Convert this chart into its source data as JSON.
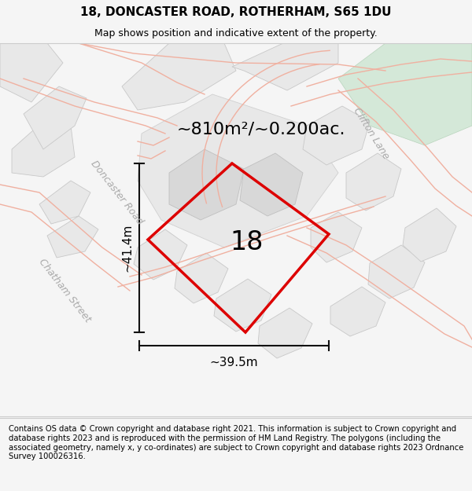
{
  "title_line1": "18, DONCASTER ROAD, ROTHERHAM, S65 1DU",
  "title_line2": "Map shows position and indicative extent of the property.",
  "footer_text": "Contains OS data © Crown copyright and database right 2021. This information is subject to Crown copyright and database rights 2023 and is reproduced with the permission of HM Land Registry. The polygons (including the associated geometry, namely x, y co-ordinates) are subject to Crown copyright and database rights 2023 Ordnance Survey 100026316.",
  "area_label": "~810m²/~0.200ac.",
  "number_label": "18",
  "width_label": "~39.5m",
  "height_label": "~41.4m",
  "road_label_doncaster": "Doncaster Road",
  "road_label_clifton": "Clifton Lane",
  "road_label_chatham": "Chatham Street",
  "bg_color": "#f5f5f5",
  "map_bg": "#ffffff",
  "road_line_color": "#f0b0a0",
  "building_fill": "#e8e8e8",
  "building_edge": "#c8c8c8",
  "plot_fill": "#e0e0e0",
  "plot_edge": "#c0c0c0",
  "green_fill": "#d4e8d8",
  "green_edge": "#b8d4bc",
  "red_color": "#dd0000",
  "dim_color": "#111111",
  "road_label_color": "#aaaaaa",
  "title_fontsize": 11,
  "subtitle_fontsize": 9,
  "footer_fontsize": 7.2,
  "area_fontsize": 16,
  "number_fontsize": 24,
  "dim_fontsize": 11,
  "road_fontsize": 9
}
